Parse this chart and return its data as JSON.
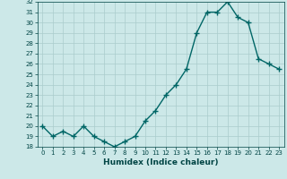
{
  "x": [
    0,
    1,
    2,
    3,
    4,
    5,
    6,
    7,
    8,
    9,
    10,
    11,
    12,
    13,
    14,
    15,
    16,
    17,
    18,
    19,
    20,
    21,
    22,
    23
  ],
  "y": [
    20,
    19,
    19.5,
    19,
    20,
    19,
    18.5,
    18,
    18.5,
    19,
    20.5,
    21.5,
    23,
    24,
    25.5,
    29,
    31,
    31,
    32,
    30.5,
    30,
    26.5,
    26,
    25.5
  ],
  "line_color": "#006666",
  "marker": "+",
  "markersize": 4,
  "markeredgewidth": 1.0,
  "bg_color": "#cce8e8",
  "grid_color": "#aacccc",
  "xlabel": "Humidex (Indice chaleur)",
  "ylim": [
    18,
    32
  ],
  "xlim": [
    -0.5,
    23.5
  ],
  "yticks": [
    18,
    19,
    20,
    21,
    22,
    23,
    24,
    25,
    26,
    27,
    28,
    29,
    30,
    31,
    32
  ],
  "xticks": [
    0,
    1,
    2,
    3,
    4,
    5,
    6,
    7,
    8,
    9,
    10,
    11,
    12,
    13,
    14,
    15,
    16,
    17,
    18,
    19,
    20,
    21,
    22,
    23
  ],
  "tick_color": "#004444",
  "label_color": "#004444",
  "linewidth": 1.0,
  "tick_fontsize": 5.0,
  "xlabel_fontsize": 6.5
}
